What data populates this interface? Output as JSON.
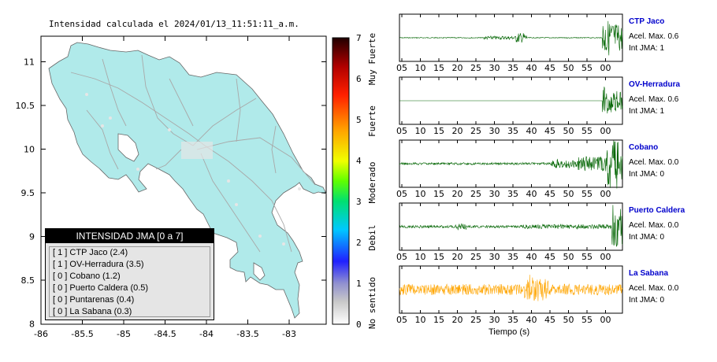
{
  "map": {
    "title": "Intensidad calculada el 2024/01/13_11:51:11_a.m.",
    "x_ticks": [
      "-86",
      "-85.5",
      "-85",
      "-84.5",
      "-84",
      "-83.5",
      "-83"
    ],
    "y_ticks": [
      "11",
      "10.5",
      "10",
      "9.5",
      "9",
      "8.5",
      "8"
    ]
  },
  "colorbar": {
    "values": [
      "7",
      "6",
      "5",
      "4",
      "3",
      "2",
      "1",
      "0"
    ],
    "categories": [
      "Muy Fuerte",
      "Fuerte",
      "Moderado",
      "Debil",
      "No sentido"
    ]
  },
  "legend": {
    "title": "INTENSIDAD JMA [0 a 7]",
    "items": [
      {
        "jma": "[ 1 ]",
        "station": "CTP Jaco (2.4)"
      },
      {
        "jma": "[ 1 ]",
        "station": "OV-Herradura (3.5)"
      },
      {
        "jma": "[ 0 ]",
        "station": "Cobano (1.2)"
      },
      {
        "jma": "[ 0 ]",
        "station": "Puerto Caldera (0.5)"
      },
      {
        "jma": "[ 0 ]",
        "station": "Puntarenas (0.4)"
      },
      {
        "jma": "[ 0 ]",
        "station": "La Sabana (0.3)"
      }
    ]
  },
  "traces": [
    {
      "name": "CTP Jaco",
      "acel": "Acel. Max. 0.6",
      "int": "Int JMA: 1",
      "color": "#006400"
    },
    {
      "name": "OV-Herradura",
      "acel": "Acel. Max. 0.6",
      "int": "Int JMA: 1",
      "color": "#006400"
    },
    {
      "name": "Cobano",
      "acel": "Acel. Max. 0.0",
      "int": "Int JMA: 0",
      "color": "#006400"
    },
    {
      "name": "Puerto Caldera",
      "acel": "Acel. Max. 0.0",
      "int": "Int JMA: 0",
      "color": "#006400"
    },
    {
      "name": "La Sabana",
      "acel": "Acel. Max. 0.0",
      "int": "Int JMA: 0",
      "color": "#ffa500"
    }
  ],
  "time_axis": {
    "ticks": [
      "05",
      "10",
      "15",
      "20",
      "25",
      "30",
      "35",
      "40",
      "45",
      "50",
      "55",
      "00"
    ],
    "label": "Tiempo (s)"
  },
  "chart_data": [
    {
      "type": "heatmap",
      "title": "Intensidad calculada el 2024/01/13_11:51:11_a.m.",
      "xlabel": "",
      "ylabel": "",
      "xlim": [
        -86,
        -82.6
      ],
      "ylim": [
        8,
        11.3
      ],
      "colorbar_range": [
        0,
        7
      ],
      "colorbar_labels": [
        "No sentido",
        "Debil",
        "Moderado",
        "Fuerte",
        "Muy Fuerte"
      ]
    },
    {
      "type": "line",
      "xlabel": "Tiempo (s)",
      "x_ticks": [
        "05",
        "10",
        "15",
        "20",
        "25",
        "30",
        "35",
        "40",
        "45",
        "50",
        "55",
        "00"
      ],
      "series": [
        {
          "name": "CTP Jaco"
        },
        {
          "name": "OV-Herradura"
        },
        {
          "name": "Cobano"
        },
        {
          "name": "Puerto Caldera"
        },
        {
          "name": "La Sabana"
        }
      ]
    }
  ]
}
